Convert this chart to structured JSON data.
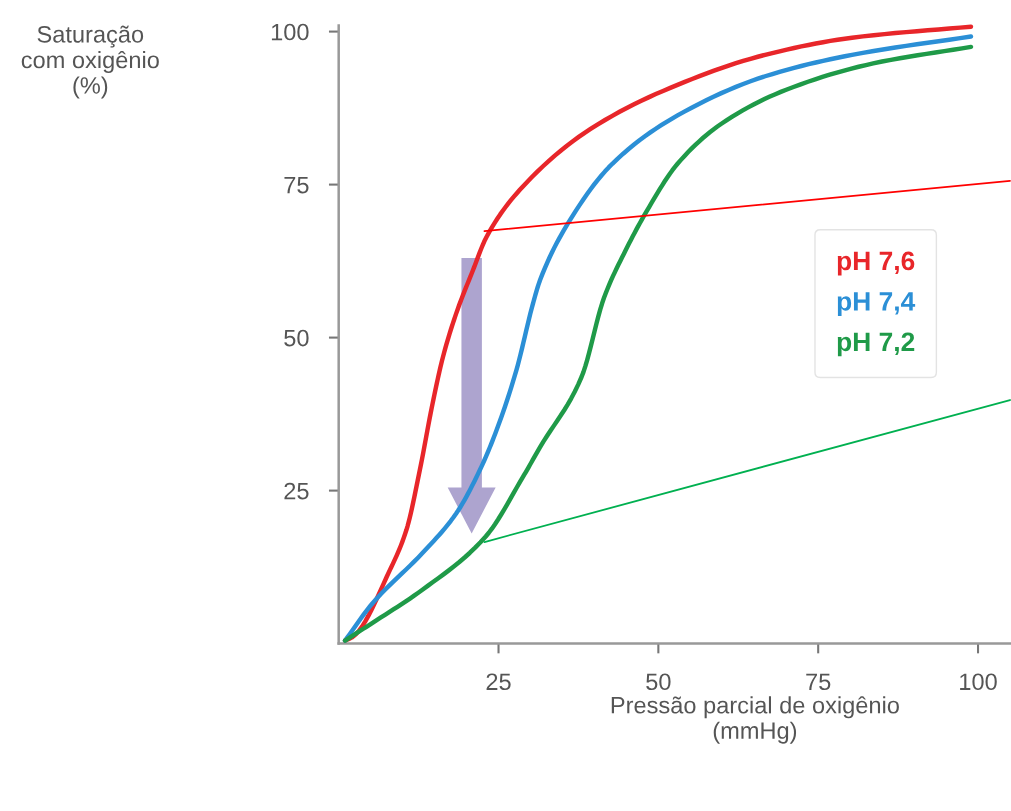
{
  "chart_data": {
    "type": "line",
    "ylabel": "Saturação\ncom oxigênio\n(%)",
    "xlabel": "Pressão parcial de oxigênio\n(mmHg)",
    "xlim": [
      0,
      105
    ],
    "ylim": [
      0,
      101
    ],
    "xticks": [
      25,
      50,
      75,
      100
    ],
    "yticks": [
      25,
      50,
      75,
      100
    ],
    "grid": false,
    "legend": "right",
    "marker": "none",
    "line_style": "solid",
    "series": [
      {
        "name": "pH 7,6",
        "color": "#e8262a",
        "x": [
          1,
          2.2,
          8,
          10.6,
          12.7,
          14.7,
          16.3,
          18.4,
          21,
          23.1,
          28.3,
          39.4,
          53,
          66.7,
          80.3,
          98.9
        ],
        "values": [
          0.5,
          1.1,
          12,
          18.6,
          28.4,
          39.3,
          46.8,
          54,
          61,
          66.4,
          74.1,
          84.1,
          91.3,
          96.2,
          99,
          100.8
        ]
      },
      {
        "name": "pH 7,4",
        "color": "#2b8fd6",
        "x": [
          1,
          5.3,
          13.1,
          18.4,
          22.1,
          24.7,
          27.8,
          30.4,
          31.5,
          36,
          42.8,
          53,
          66.7,
          80.3,
          98.9
        ],
        "values": [
          0.5,
          6.6,
          14.8,
          21.3,
          28.4,
          34.9,
          44.7,
          55.6,
          59.4,
          68.9,
          78.4,
          86.3,
          92.7,
          96.2,
          99.2
        ]
      },
      {
        "name": "pH 7,2",
        "color": "#1f9a48",
        "x": [
          1,
          5.3,
          13.1,
          23,
          28.8,
          31.5,
          38,
          41.5,
          44.9,
          48.2,
          53,
          59.8,
          70,
          83.6,
          98.9
        ],
        "values": [
          0.5,
          3.4,
          8.8,
          17.5,
          27.2,
          32.1,
          43.6,
          56.5,
          64.3,
          70.7,
          78.4,
          84.9,
          90.5,
          94.8,
          97.5
        ]
      },
      {
        "type": "line",
        "color": "#ff0000",
        "x": [
          22.8,
          105
        ],
        "values": [
          67.4,
          75.6
        ]
      },
      {
        "type": "line",
        "color": "#00b050",
        "x": [
          22.8,
          105
        ],
        "values": [
          16.6,
          39.8
        ]
      }
    ]
  }
}
